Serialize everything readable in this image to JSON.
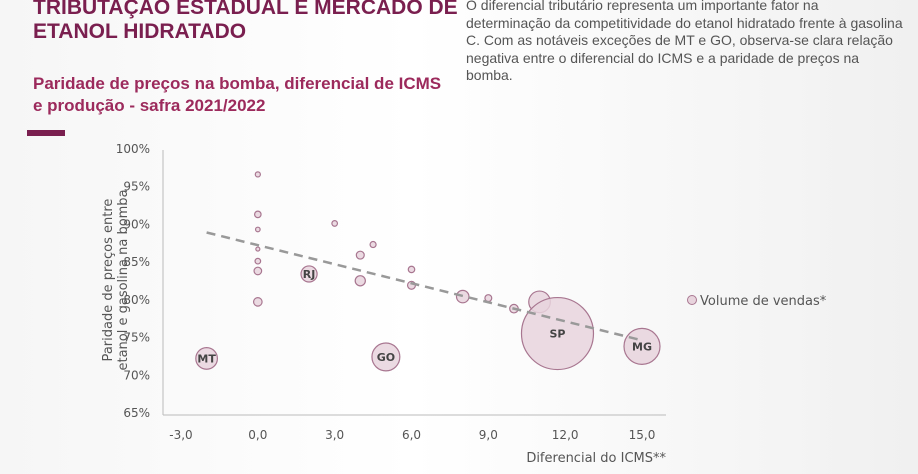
{
  "header": {
    "title_lines": [
      "TRIBUTAÇAO ESTADUAL E MERCADO DE",
      "ETANOL HIDRATADO"
    ],
    "subtitle_lines": [
      "Paridade de preços na bomba, diferencial de ICMS",
      "e produção - safra 2021/2022"
    ],
    "description": "O diferencial tributário representa um importante fator na determinação da competitividade do etanol hidratado frente à gasolina C. Com as notáveis exceções de MT e GO, observa-se clara relação negativa entre o diferencial do ICMS e a paridade de preços na bomba."
  },
  "colors": {
    "accent": "#7a1f4f",
    "bubble_fill": "#e8d4dd",
    "bubble_stroke": "#a87690",
    "trend": "#999999"
  },
  "chart_data": {
    "type": "scatter",
    "xlabel": "Diferencial do ICMS**",
    "ylabel_lines": [
      "Paridade de preços entre",
      "etanol e gasolina na bomba"
    ],
    "xlim": [
      -3,
      15
    ],
    "ylim": [
      65,
      100
    ],
    "xticks": [
      -3,
      0,
      3,
      6,
      9,
      12,
      15
    ],
    "xtick_labels": [
      "-3,0",
      "0,0",
      "3,0",
      "6,0",
      "9,0",
      "12,0",
      "15,0"
    ],
    "yticks": [
      65,
      70,
      75,
      80,
      85,
      90,
      95,
      100
    ],
    "ytick_labels": [
      "65%",
      "70%",
      "75%",
      "80%",
      "85%",
      "90%",
      "95%",
      "100%"
    ],
    "legend": {
      "label": "Volume de vendas*",
      "position": "right"
    },
    "points": [
      {
        "x": 0,
        "y": 96.5,
        "size": 0.5,
        "label": ""
      },
      {
        "x": 0,
        "y": 91.2,
        "size": 0.8,
        "label": ""
      },
      {
        "x": 0,
        "y": 89.2,
        "size": 0.4,
        "label": ""
      },
      {
        "x": 0,
        "y": 86.6,
        "size": 0.15,
        "label": ""
      },
      {
        "x": 0,
        "y": 85.0,
        "size": 0.6,
        "label": ""
      },
      {
        "x": 0,
        "y": 83.7,
        "size": 1.1,
        "label": ""
      },
      {
        "x": 0,
        "y": 79.6,
        "size": 1.4,
        "label": ""
      },
      {
        "x": 2,
        "y": 83.3,
        "size": 5,
        "label": "RJ"
      },
      {
        "x": 3,
        "y": 90.0,
        "size": 0.6,
        "label": ""
      },
      {
        "x": 4,
        "y": 85.8,
        "size": 1.2,
        "label": ""
      },
      {
        "x": 4,
        "y": 82.4,
        "size": 2,
        "label": ""
      },
      {
        "x": 4.5,
        "y": 87.2,
        "size": 0.7,
        "label": ""
      },
      {
        "x": 6,
        "y": 83.9,
        "size": 0.8,
        "label": ""
      },
      {
        "x": 6,
        "y": 81.8,
        "size": 1.2,
        "label": ""
      },
      {
        "x": 8,
        "y": 80.3,
        "size": 3,
        "label": ""
      },
      {
        "x": 9,
        "y": 80.1,
        "size": 0.9,
        "label": ""
      },
      {
        "x": 10,
        "y": 78.7,
        "size": 1.4,
        "label": ""
      },
      {
        "x": 11,
        "y": 79.6,
        "size": 9,
        "label": ""
      },
      {
        "x": 11.7,
        "y": 75.4,
        "size": 100,
        "label": "SP"
      },
      {
        "x": 15,
        "y": 73.7,
        "size": 25,
        "label": "MG"
      },
      {
        "x": -2,
        "y": 72.1,
        "size": 9,
        "label": "MT"
      },
      {
        "x": 5,
        "y": 72.3,
        "size": 15,
        "label": "GO"
      }
    ],
    "trendline": {
      "x": [
        -2,
        15
      ],
      "y": [
        88.8,
        74.5
      ]
    }
  }
}
